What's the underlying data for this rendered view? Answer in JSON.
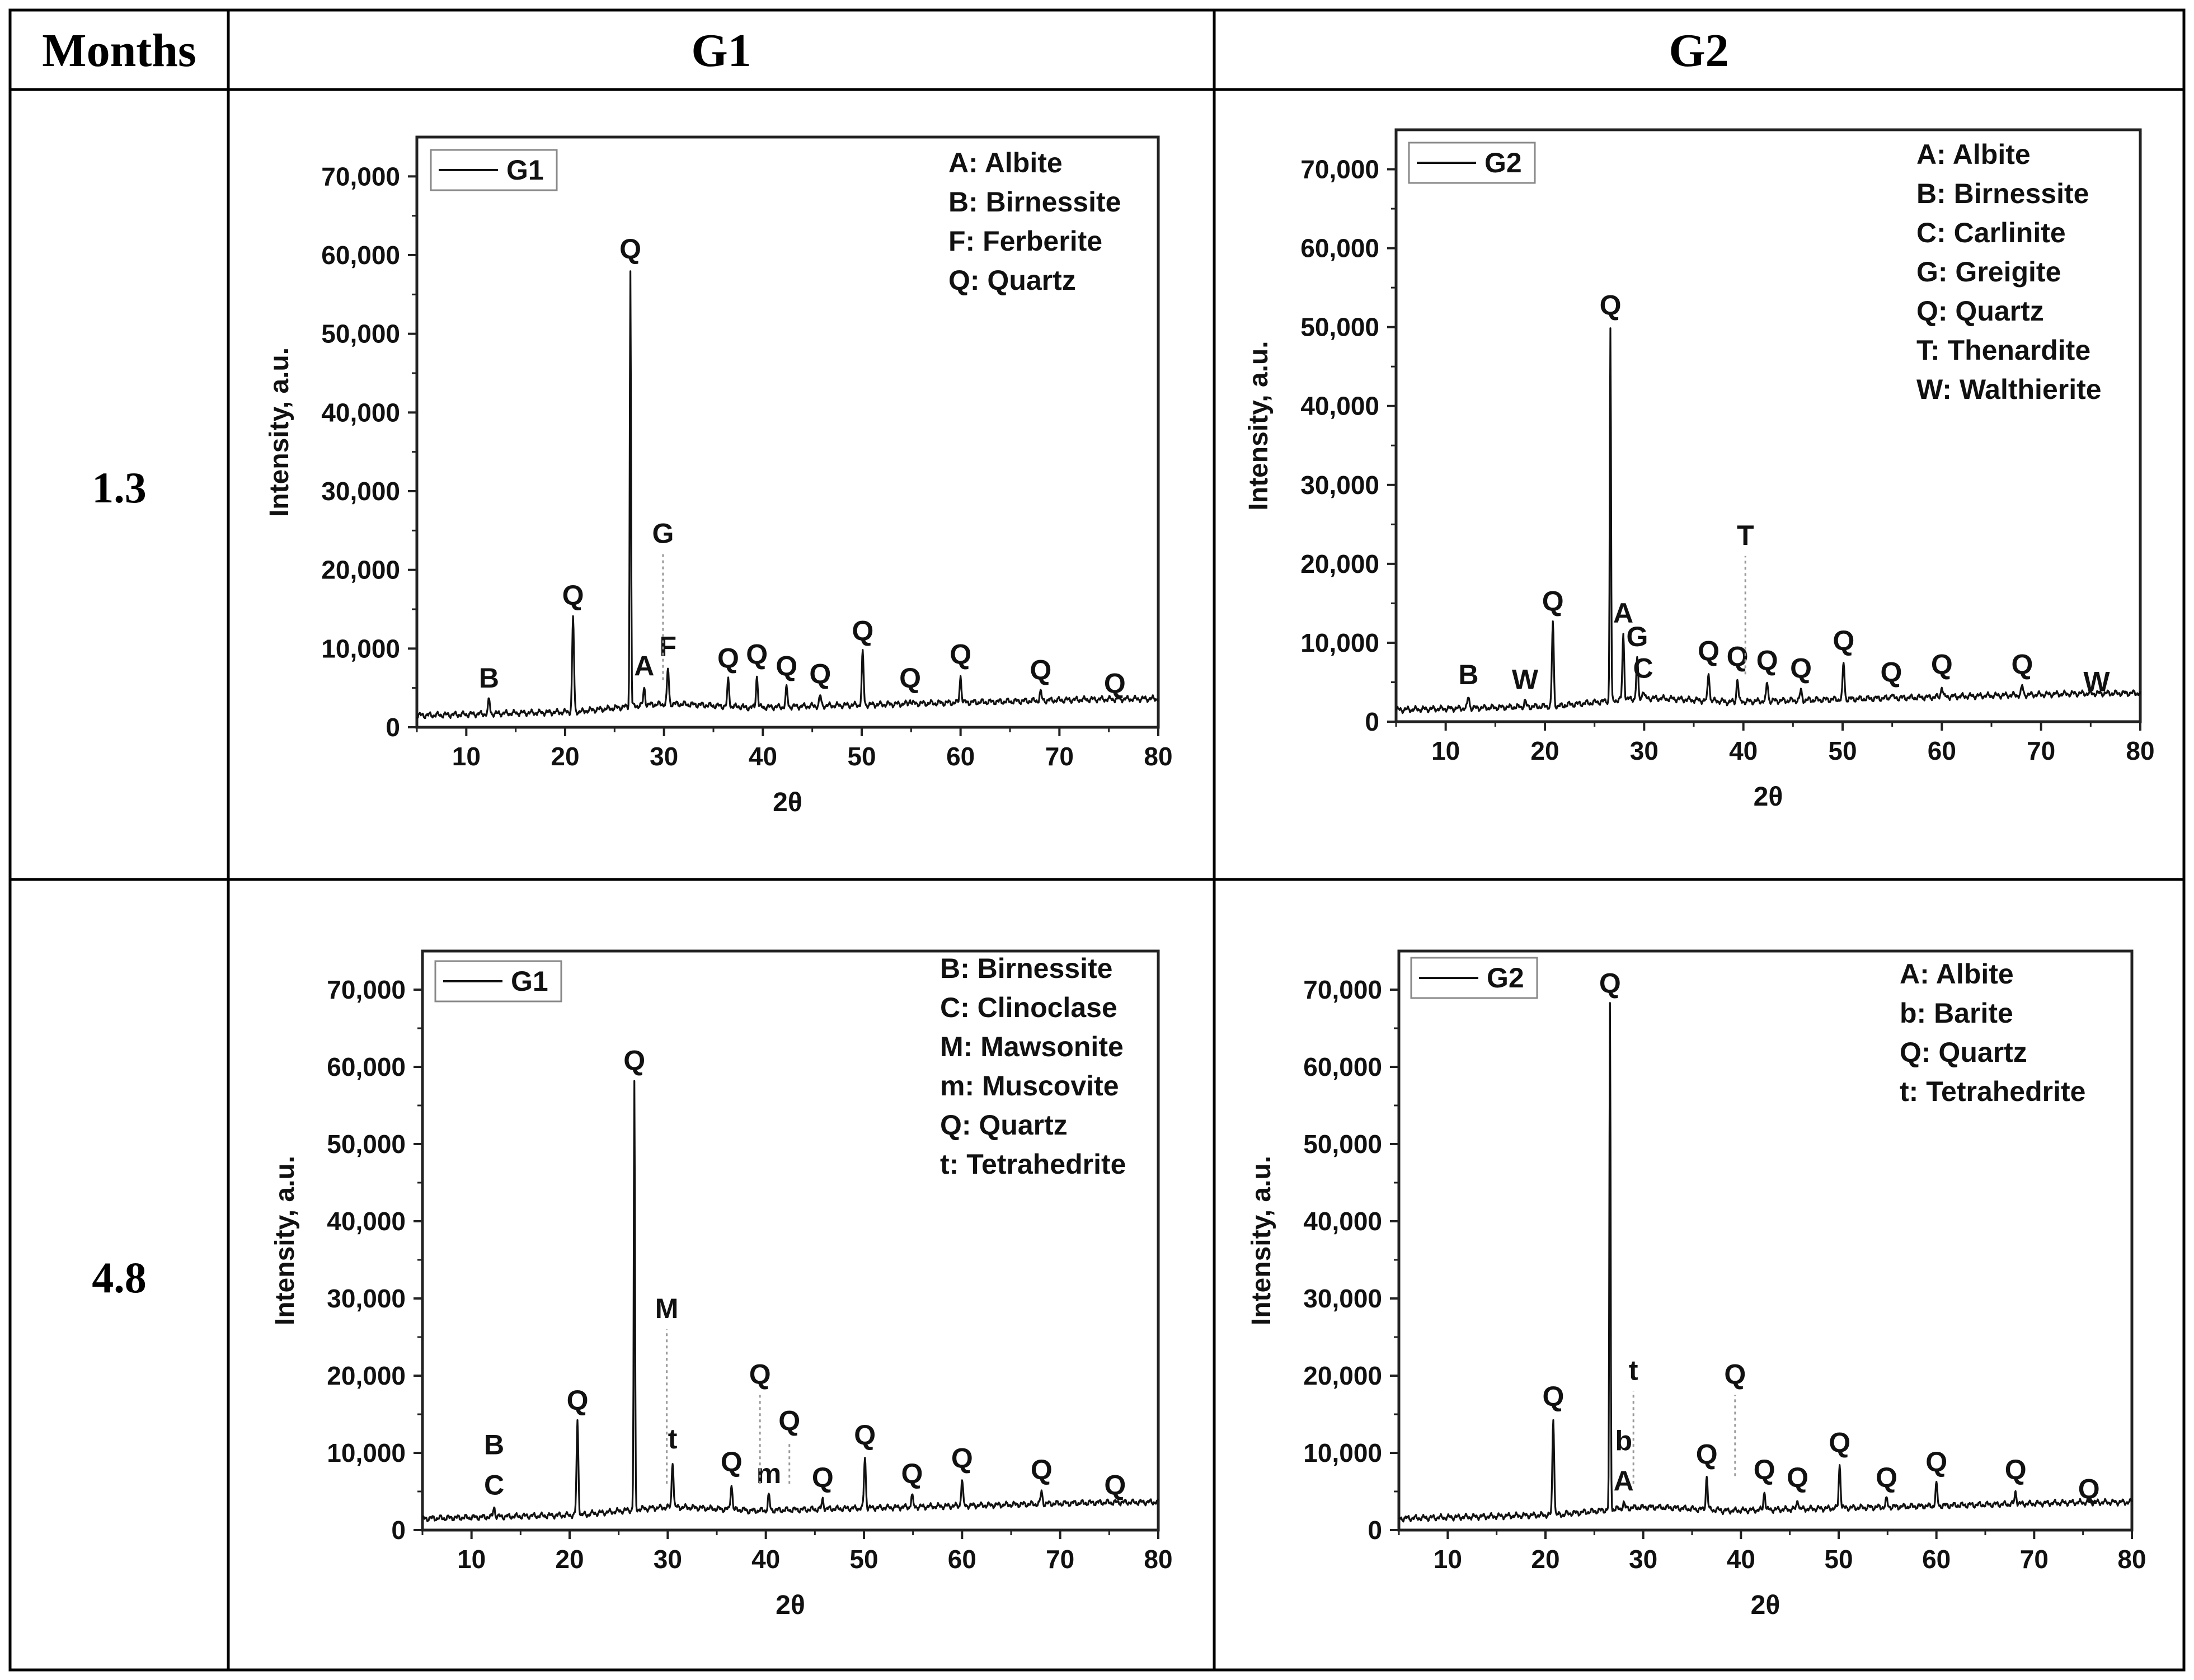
{
  "table": {
    "header_months": "Months",
    "header_g1": "G1",
    "header_g2": "G2",
    "row1_months": "1.3",
    "row2_months": "4.8"
  },
  "chart_data": [
    {
      "id": "g1-1.3",
      "type": "line",
      "series_name": "G1",
      "xlabel": "2θ",
      "ylabel": "Intensity, a.u.",
      "xlim": [
        5,
        80
      ],
      "ylim": [
        0,
        75000
      ],
      "xticks": [
        10,
        20,
        30,
        40,
        50,
        60,
        70,
        80
      ],
      "xtick_labels": [
        "10",
        "20",
        "30",
        "40",
        "50",
        "60",
        "70",
        "80"
      ],
      "yticks": [
        0,
        10000,
        20000,
        30000,
        40000,
        50000,
        60000,
        70000
      ],
      "ytick_labels": [
        "0",
        "10,000",
        "20,000",
        "30,000",
        "40,000",
        "50,000",
        "60,000",
        "70,000"
      ],
      "legend_entries": [
        "A: Albite",
        "B: Birnessite",
        "F: Ferberite",
        "Q: Quartz"
      ],
      "peaks": [
        {
          "x": 12.3,
          "y": 3500,
          "label": "B"
        },
        {
          "x": 20.8,
          "y": 14000,
          "label": "Q"
        },
        {
          "x": 26.6,
          "y": 58000,
          "label": "Q"
        },
        {
          "x": 28.0,
          "y": 5000,
          "label": "A"
        },
        {
          "x": 30.4,
          "y": 7500,
          "label": "F"
        },
        {
          "x": 36.5,
          "y": 6000,
          "label": "Q"
        },
        {
          "x": 39.4,
          "y": 6500,
          "label": "Q"
        },
        {
          "x": 42.4,
          "y": 5000,
          "label": "Q"
        },
        {
          "x": 45.8,
          "y": 4000,
          "label": "Q"
        },
        {
          "x": 50.1,
          "y": 9500,
          "label": "Q"
        },
        {
          "x": 54.9,
          "y": 3500,
          "label": "Q"
        },
        {
          "x": 60.0,
          "y": 6500,
          "label": "Q"
        },
        {
          "x": 68.1,
          "y": 4500,
          "label": "Q"
        },
        {
          "x": 75.6,
          "y": 2800,
          "label": "Q"
        }
      ],
      "marker": {
        "x": 29.9,
        "y_from": 6000,
        "y_to": 22000,
        "label": "G"
      }
    },
    {
      "id": "g2-1.3",
      "type": "line",
      "series_name": "G2",
      "xlabel": "2θ",
      "ylabel": "Intensity, a.u.",
      "xlim": [
        5,
        80
      ],
      "ylim": [
        0,
        75000
      ],
      "xticks": [
        10,
        20,
        30,
        40,
        50,
        60,
        70,
        80
      ],
      "xtick_labels": [
        "10",
        "20",
        "30",
        "40",
        "50",
        "60",
        "70",
        "80"
      ],
      "yticks": [
        0,
        10000,
        20000,
        30000,
        40000,
        50000,
        60000,
        70000
      ],
      "ytick_labels": [
        "0",
        "10,000",
        "20,000",
        "30,000",
        "40,000",
        "50,000",
        "60,000",
        "70,000"
      ],
      "legend_entries": [
        "A: Albite",
        "B: Birnessite",
        "C: Carlinite",
        "G: Greigite",
        "Q: Quartz",
        "T: Thenardite",
        "W: Walthierite"
      ],
      "peaks": [
        {
          "x": 12.3,
          "y": 3200,
          "label": "B"
        },
        {
          "x": 18.0,
          "y": 2600,
          "label": "W"
        },
        {
          "x": 20.8,
          "y": 12500,
          "label": "Q"
        },
        {
          "x": 26.6,
          "y": 50000,
          "label": "Q"
        },
        {
          "x": 27.9,
          "y": 11000,
          "label": "A"
        },
        {
          "x": 29.3,
          "y": 8000,
          "label": "G"
        },
        {
          "x": 29.9,
          "y": 4000,
          "label": "C"
        },
        {
          "x": 36.5,
          "y": 6200,
          "label": "Q"
        },
        {
          "x": 39.4,
          "y": 5500,
          "label": "Q"
        },
        {
          "x": 42.4,
          "y": 5000,
          "label": "Q"
        },
        {
          "x": 45.8,
          "y": 4000,
          "label": "Q"
        },
        {
          "x": 50.1,
          "y": 7500,
          "label": "Q"
        },
        {
          "x": 54.9,
          "y": 3500,
          "label": "Q"
        },
        {
          "x": 60.0,
          "y": 4500,
          "label": "Q"
        },
        {
          "x": 68.1,
          "y": 4500,
          "label": "Q"
        },
        {
          "x": 75.6,
          "y": 2300,
          "label": "W"
        }
      ],
      "marker": {
        "x": 40.2,
        "y_from": 6000,
        "y_to": 21000,
        "label": "T"
      }
    },
    {
      "id": "g1-4.8",
      "type": "line",
      "series_name": "G1",
      "xlabel": "2θ",
      "ylabel": "Intensity, a.u.",
      "xlim": [
        5,
        80
      ],
      "ylim": [
        0,
        75000
      ],
      "xticks": [
        10,
        20,
        30,
        40,
        50,
        60,
        70,
        80
      ],
      "xtick_labels": [
        "10",
        "20",
        "30",
        "40",
        "50",
        "60",
        "70",
        "80"
      ],
      "yticks": [
        0,
        10000,
        20000,
        30000,
        40000,
        50000,
        60000,
        70000
      ],
      "ytick_labels": [
        "0",
        "10,000",
        "20,000",
        "30,000",
        "40,000",
        "50,000",
        "60,000",
        "70,000"
      ],
      "legend_entries": [
        "B: Birnessite",
        "C: Clinoclase",
        "M: Mawsonite",
        "m: Muscovite",
        "Q: Quartz",
        "t: Tetrahedrite"
      ],
      "peaks": [
        {
          "x": 12.3,
          "y": 3000,
          "label": "C",
          "label2": "B"
        },
        {
          "x": 20.8,
          "y": 14000,
          "label": "Q"
        },
        {
          "x": 26.6,
          "y": 58000,
          "label": "Q"
        },
        {
          "x": 30.5,
          "y": 9000,
          "label": "t"
        },
        {
          "x": 36.5,
          "y": 6000,
          "label": "Q"
        },
        {
          "x": 40.3,
          "y": 4500,
          "label": "m"
        },
        {
          "x": 45.8,
          "y": 4000,
          "label": "Q"
        },
        {
          "x": 50.1,
          "y": 9500,
          "label": "Q"
        },
        {
          "x": 54.9,
          "y": 4500,
          "label": "Q"
        },
        {
          "x": 60.0,
          "y": 6500,
          "label": "Q"
        },
        {
          "x": 68.1,
          "y": 5000,
          "label": "Q"
        },
        {
          "x": 75.6,
          "y": 3000,
          "label": "Q"
        }
      ],
      "markers": [
        {
          "x": 29.9,
          "y_from": 6000,
          "y_to": 26000,
          "label": "M"
        },
        {
          "x": 39.4,
          "y_from": 6000,
          "y_to": 17500,
          "label": "Q"
        },
        {
          "x": 42.4,
          "y_from": 6000,
          "y_to": 11500,
          "label": "Q"
        }
      ]
    },
    {
      "id": "g2-4.8",
      "type": "line",
      "series_name": "G2",
      "xlabel": "2θ",
      "ylabel": "Intensity, a.u.",
      "xlim": [
        5,
        80
      ],
      "ylim": [
        0,
        75000
      ],
      "xticks": [
        10,
        20,
        30,
        40,
        50,
        60,
        70,
        80
      ],
      "xtick_labels": [
        "10",
        "20",
        "30",
        "40",
        "50",
        "60",
        "70",
        "80"
      ],
      "yticks": [
        0,
        10000,
        20000,
        30000,
        40000,
        50000,
        60000,
        70000
      ],
      "ytick_labels": [
        "0",
        "10,000",
        "20,000",
        "30,000",
        "40,000",
        "50,000",
        "60,000",
        "70,000"
      ],
      "legend_entries": [
        "A: Albite",
        "b: Barite",
        "Q: Quartz",
        "t: Tetrahedrite"
      ],
      "peaks": [
        {
          "x": 20.8,
          "y": 14500,
          "label": "Q"
        },
        {
          "x": 26.6,
          "y": 68000,
          "label": "Q"
        },
        {
          "x": 28.0,
          "y": 3500,
          "label": "A",
          "label2": "b"
        },
        {
          "x": 36.5,
          "y": 7000,
          "label": "Q"
        },
        {
          "x": 42.4,
          "y": 5000,
          "label": "Q"
        },
        {
          "x": 45.8,
          "y": 4000,
          "label": "Q"
        },
        {
          "x": 50.1,
          "y": 8500,
          "label": "Q"
        },
        {
          "x": 54.9,
          "y": 4000,
          "label": "Q"
        },
        {
          "x": 60.0,
          "y": 6000,
          "label": "Q"
        },
        {
          "x": 68.1,
          "y": 5000,
          "label": "Q"
        },
        {
          "x": 75.6,
          "y": 2500,
          "label": "Q"
        }
      ],
      "markers": [
        {
          "x": 29.0,
          "y_from": 6000,
          "y_to": 18000,
          "label": "t"
        },
        {
          "x": 39.4,
          "y_from": 7000,
          "y_to": 17500,
          "label": "Q"
        }
      ]
    }
  ]
}
